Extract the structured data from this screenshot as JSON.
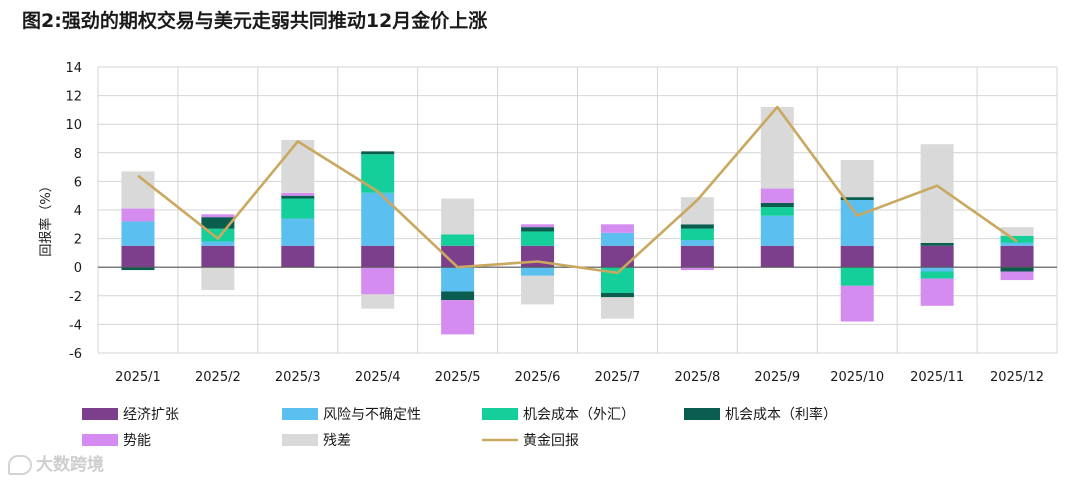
{
  "title": "图2:强劲的期权交易与美元走弱共同推动12月金价上涨",
  "watermark": "大数跨境",
  "colors": {
    "econ": "#7b3f8c",
    "risk": "#5bc0f0",
    "fx": "#15cf9a",
    "rate": "#0a5d4f",
    "momentum": "#d58cf0",
    "residual": "#d9d9d9",
    "gold_line": "#c9a860",
    "grid": "#d4d4d4",
    "axis": "#595959"
  },
  "chart_data": {
    "type": "bar",
    "stacked": true,
    "title": "图2:强劲的期权交易与美元走弱共同推动12月金价上涨",
    "ylabel": "回报率（%）",
    "ylim": [
      -6,
      14
    ],
    "yticks": [
      -6,
      -4,
      -2,
      0,
      2,
      4,
      6,
      8,
      10,
      12,
      14
    ],
    "categories": [
      "2025/1",
      "2025/2",
      "2025/3",
      "2025/4",
      "2025/5",
      "2025/6",
      "2025/7",
      "2025/8",
      "2025/9",
      "2025/10",
      "2025/11",
      "2025/12"
    ],
    "series": [
      {
        "key": "econ",
        "name": "经济扩张",
        "values": [
          1.5,
          1.5,
          1.5,
          1.5,
          1.5,
          1.5,
          1.5,
          1.5,
          1.5,
          1.5,
          1.5,
          1.5
        ]
      },
      {
        "key": "risk",
        "name": "风险与不确定性",
        "values": [
          1.7,
          0.3,
          1.9,
          3.7,
          -1.7,
          -0.6,
          0.9,
          0.4,
          2.1,
          3.2,
          -0.3,
          0.2
        ]
      },
      {
        "key": "fx",
        "name": "机会成本（外汇）",
        "values": [
          0,
          0.9,
          1.4,
          2.7,
          0.8,
          1.0,
          -1.8,
          0.8,
          0.6,
          -1.3,
          -0.5,
          0.5
        ]
      },
      {
        "key": "rate",
        "name": "机会成本（利率）",
        "values": [
          -0.2,
          0.8,
          0.2,
          0.2,
          -0.6,
          0.3,
          -0.3,
          0.3,
          0.3,
          0.2,
          0.2,
          -0.3
        ]
      },
      {
        "key": "momentum",
        "name": "势能",
        "values": [
          0.9,
          0.2,
          0.2,
          -1.9,
          -2.4,
          0.2,
          0.6,
          -0.2,
          1.0,
          -2.5,
          -1.9,
          -0.6
        ]
      },
      {
        "key": "residual",
        "name": "残差",
        "values": [
          2.6,
          -1.6,
          3.7,
          -1.0,
          2.5,
          -2.0,
          -1.5,
          1.9,
          5.7,
          2.6,
          6.9,
          0.6
        ]
      }
    ],
    "line": {
      "name": "黄金回报",
      "values": [
        6.4,
        2.0,
        8.8,
        5.3,
        0.0,
        0.4,
        -0.4,
        4.7,
        11.2,
        3.6,
        5.7,
        1.8
      ]
    },
    "legend": [
      "经济扩张",
      "风险与不确定性",
      "机会成本（外汇）",
      "机会成本（利率）",
      "势能",
      "残差",
      "黄金回报"
    ],
    "legend_position": "bottom",
    "grid": true
  }
}
